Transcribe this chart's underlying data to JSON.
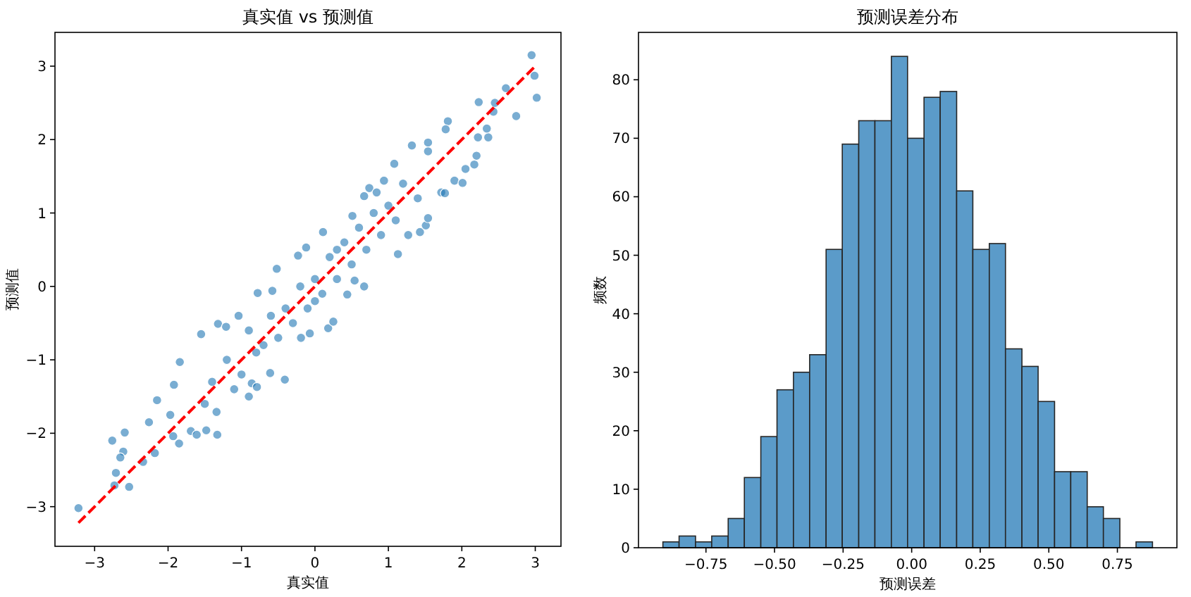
{
  "chart_data": [
    {
      "type": "scatter",
      "title": "真实值 vs 预测值",
      "xlabel": "真实值",
      "ylabel": "预测值",
      "xlim": [
        -3.54,
        3.35
      ],
      "ylim": [
        -3.54,
        3.46
      ],
      "xticks": [
        {
          "value": -3,
          "label": "−3"
        },
        {
          "value": -2,
          "label": "−2"
        },
        {
          "value": -1,
          "label": "−1"
        },
        0,
        1,
        2,
        3
      ],
      "yticks": [
        {
          "value": -3,
          "label": "−3"
        },
        {
          "value": -2,
          "label": "−2"
        },
        {
          "value": -1,
          "label": "−1"
        },
        0,
        1,
        2,
        3
      ],
      "series": [
        {
          "type": "scatter",
          "color": "#1f77b4",
          "marker": "circle",
          "x": [
            -3.22,
            -2.76,
            -2.59,
            -2.61,
            -2.65,
            -2.71,
            -2.73,
            -2.53,
            -2.34,
            -2.18,
            -2.26,
            -2.15,
            -1.97,
            -1.93,
            -1.85,
            -1.92,
            -1.84,
            -1.69,
            -1.55,
            -1.61,
            -1.48,
            -1.33,
            -1.32,
            -1.34,
            -1.21,
            -1.04,
            -0.9,
            -0.86,
            -0.79,
            -0.61,
            -0.52,
            -0.41,
            -0.78,
            -0.58,
            -0.19,
            -0.07,
            0.18,
            0.25,
            0.11,
            -0.12,
            -0.23,
            0.44,
            0.67,
            0.54,
            0.51,
            0.67,
            0.74,
            0.84,
            0.94,
            1.08,
            1.13,
            1.27,
            1.43,
            1.51,
            1.54,
            1.32,
            1.54,
            1.54,
            1.72,
            1.77,
            1.81,
            1.78,
            1.9,
            2.01,
            2.05,
            2.17,
            2.2,
            2.23,
            2.22,
            2.36,
            2.34,
            2.43,
            2.45,
            2.6,
            2.74,
            2.95,
            2.99,
            3.02,
            -1.2,
            -1.0,
            -0.9,
            -0.7,
            -0.6,
            -0.5,
            -0.4,
            -0.3,
            -0.2,
            -0.1,
            0.0,
            0.1,
            0.2,
            0.3,
            0.4,
            0.5,
            0.6,
            0.7,
            0.8,
            0.9,
            1.0,
            1.1,
            1.2,
            1.4,
            -1.4,
            -1.5,
            -1.1,
            -0.8,
            0.0,
            0.3
          ],
          "values": [
            -3.02,
            -2.1,
            -1.99,
            -2.25,
            -2.33,
            -2.54,
            -2.71,
            -2.73,
            -2.39,
            -2.27,
            -1.85,
            -1.55,
            -1.75,
            -2.04,
            -2.14,
            -1.34,
            -1.03,
            -1.97,
            -0.65,
            -2.02,
            -1.96,
            -2.02,
            -0.51,
            -1.71,
            -0.55,
            -0.4,
            -1.5,
            -1.32,
            -1.37,
            -1.18,
            0.24,
            -1.27,
            -0.09,
            -0.06,
            -0.7,
            -0.64,
            -0.57,
            -0.48,
            0.74,
            0.53,
            0.42,
            -0.11,
            0.0,
            0.08,
            0.96,
            1.23,
            1.34,
            1.28,
            1.44,
            1.67,
            0.44,
            0.7,
            0.74,
            0.83,
            0.93,
            1.92,
            1.96,
            1.84,
            1.28,
            1.27,
            2.25,
            2.14,
            1.44,
            1.41,
            1.6,
            1.66,
            1.78,
            2.51,
            2.03,
            2.03,
            2.15,
            2.38,
            2.5,
            2.7,
            2.32,
            3.15,
            2.87,
            2.57,
            -1.0,
            -1.2,
            -0.6,
            -0.8,
            -0.4,
            -0.7,
            -0.3,
            -0.5,
            0.0,
            -0.3,
            0.1,
            -0.1,
            0.4,
            0.1,
            0.6,
            0.3,
            0.8,
            0.5,
            1.0,
            0.7,
            1.1,
            0.9,
            1.4,
            1.2,
            -1.3,
            -1.6,
            -1.4,
            -0.9,
            -0.2,
            0.5
          ]
        },
        {
          "type": "line",
          "color": "#ff0000",
          "line_style": "dashed",
          "marker": "none",
          "x": [
            -3.22,
            3.02
          ],
          "values": [
            -3.22,
            3.02
          ]
        }
      ]
    },
    {
      "type": "histogram",
      "title": "预测误差分布",
      "xlabel": "预测误差",
      "ylabel": "频数",
      "color": "#5b9bc9",
      "xlim": [
        -0.996,
        0.967
      ],
      "ylim": [
        0,
        88.1
      ],
      "xticks": [
        {
          "value": -0.75,
          "label": "−0.75"
        },
        {
          "value": -0.5,
          "label": "−0.50"
        },
        {
          "value": -0.25,
          "label": "−0.25"
        },
        {
          "value": 0,
          "label": "0.00"
        },
        {
          "value": 0.25,
          "label": "0.25"
        },
        {
          "value": 0.5,
          "label": "0.50"
        },
        {
          "value": 0.75,
          "label": "0.75"
        }
      ],
      "yticks": [
        0,
        10,
        20,
        30,
        40,
        50,
        60,
        70,
        80
      ],
      "bins": [
        -0.907,
        -0.848,
        -0.788,
        -0.729,
        -0.669,
        -0.61,
        -0.55,
        -0.491,
        -0.431,
        -0.372,
        -0.312,
        -0.253,
        -0.193,
        -0.134,
        -0.074,
        -0.015,
        0.045,
        0.104,
        0.164,
        0.223,
        0.283,
        0.342,
        0.402,
        0.461,
        0.521,
        0.58,
        0.64,
        0.699,
        0.759,
        0.818,
        0.878
      ],
      "values": [
        1,
        2,
        1,
        2,
        5,
        12,
        19,
        27,
        30,
        33,
        51,
        69,
        73,
        73,
        84,
        70,
        77,
        78,
        61,
        51,
        52,
        34,
        31,
        25,
        13,
        13,
        7,
        5,
        0,
        1
      ]
    }
  ]
}
